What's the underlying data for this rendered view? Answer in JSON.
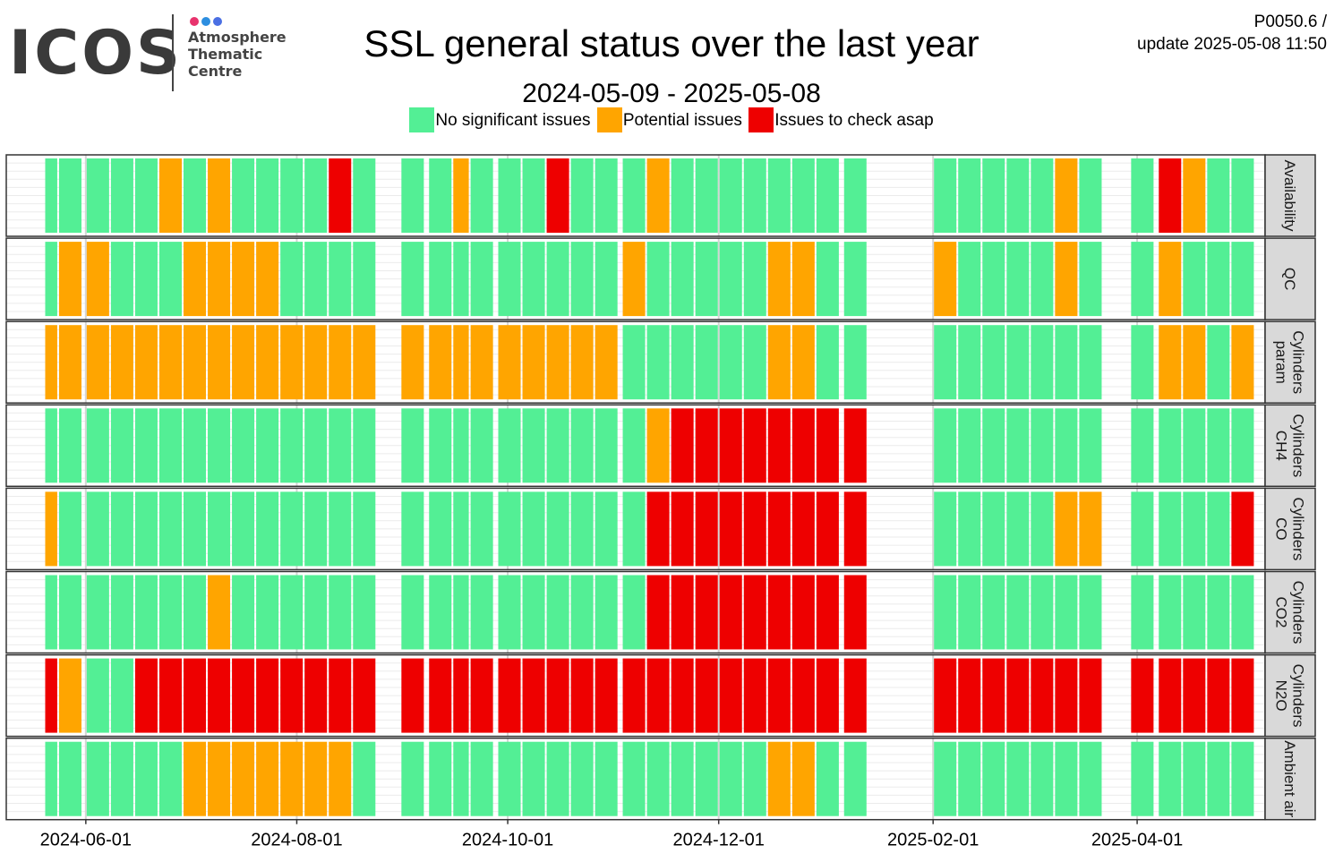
{
  "logo": {
    "wordmark": "ICOS",
    "line1": "Atmosphere",
    "line2": "Thematic",
    "line3": "Centre",
    "dot_colors": [
      "#e8336d",
      "#2d8ee0",
      "#4a6fe3"
    ]
  },
  "header": {
    "title": "SSL general status over the last year",
    "subtitle": "2024-05-09 - 2025-05-08",
    "version": "P0050.6 /",
    "update_label": "update  2025-05-08 11:50"
  },
  "colors": {
    "G": "#53ef95",
    "O": "#ffa500",
    "R": "#ee0000"
  },
  "chart_data": {
    "type": "heatmap",
    "title": "SSL general status over the last year",
    "subtitle": "2024-05-09 - 2025-05-08",
    "x_range": [
      "2024-05-09",
      "2025-05-08"
    ],
    "x_ticks": [
      "2024-06-01",
      "2024-08-01",
      "2024-10-01",
      "2024-12-01",
      "2025-02-01",
      "2025-04-01"
    ],
    "legend": [
      {
        "code": "G",
        "label": "No significant issues"
      },
      {
        "code": "O",
        "label": "Potential issues"
      },
      {
        "code": "R",
        "label": "Issues to check asap"
      }
    ],
    "weeks": [
      "2024-05-20",
      "2024-05-24",
      "2024-06-01",
      "2024-06-08",
      "2024-06-15",
      "2024-06-22",
      "2024-06-29",
      "2024-07-06",
      "2024-07-13",
      "2024-07-20",
      "2024-07-27",
      "2024-08-03",
      "2024-08-10",
      "2024-08-17",
      "2024-08-31",
      "2024-09-08",
      "2024-09-15",
      "2024-09-20",
      "2024-09-28",
      "2024-10-05",
      "2024-10-12",
      "2024-10-19",
      "2024-10-26",
      "2024-11-03",
      "2024-11-10",
      "2024-11-17",
      "2024-11-24",
      "2024-12-01",
      "2024-12-08",
      "2024-12-15",
      "2024-12-22",
      "2024-12-29",
      "2025-01-06",
      "2025-02-01",
      "2025-02-08",
      "2025-02-15",
      "2025-02-22",
      "2025-03-01",
      "2025-03-08",
      "2025-03-15",
      "2025-03-30",
      "2025-04-07",
      "2025-04-14",
      "2025-04-21",
      "2025-04-28"
    ],
    "rows": [
      {
        "label": "Availability",
        "label_lines": [
          "Availability"
        ],
        "status": [
          "G",
          "G",
          "G",
          "G",
          "G",
          "O",
          "G",
          "O",
          "G",
          "G",
          "G",
          "G",
          "R",
          "G",
          "G",
          "G",
          "O",
          "G",
          "G",
          "G",
          "R",
          "G",
          "G",
          "G",
          "O",
          "G",
          "G",
          "G",
          "G",
          "G",
          "G",
          "G",
          "G",
          "G",
          "G",
          "G",
          "G",
          "G",
          "O",
          "G",
          "G",
          "R",
          "O",
          "G",
          "G"
        ]
      },
      {
        "label": "QC",
        "label_lines": [
          "QC"
        ],
        "status": [
          "G",
          "O",
          "O",
          "G",
          "G",
          "G",
          "O",
          "O",
          "O",
          "O",
          "G",
          "G",
          "G",
          "G",
          "G",
          "G",
          "G",
          "G",
          "G",
          "G",
          "G",
          "G",
          "G",
          "O",
          "G",
          "G",
          "G",
          "G",
          "G",
          "O",
          "O",
          "G",
          "G",
          "O",
          "G",
          "G",
          "G",
          "G",
          "O",
          "G",
          "G",
          "O",
          "G",
          "G",
          "G"
        ]
      },
      {
        "label": "Cylinders param",
        "label_lines": [
          "Cylinders",
          "param"
        ],
        "status": [
          "O",
          "O",
          "O",
          "O",
          "O",
          "O",
          "O",
          "O",
          "O",
          "O",
          "O",
          "O",
          "O",
          "O",
          "O",
          "O",
          "O",
          "O",
          "O",
          "O",
          "O",
          "O",
          "O",
          "G",
          "G",
          "G",
          "G",
          "G",
          "G",
          "O",
          "O",
          "G",
          "G",
          "G",
          "G",
          "G",
          "G",
          "G",
          "G",
          "G",
          "G",
          "O",
          "O",
          "G",
          "O"
        ]
      },
      {
        "label": "Cylinders CH4",
        "label_lines": [
          "Cylinders",
          "CH4"
        ],
        "status": [
          "G",
          "G",
          "G",
          "G",
          "G",
          "G",
          "G",
          "G",
          "G",
          "G",
          "G",
          "G",
          "G",
          "G",
          "G",
          "G",
          "G",
          "G",
          "G",
          "G",
          "G",
          "G",
          "G",
          "G",
          "O",
          "R",
          "R",
          "R",
          "R",
          "R",
          "R",
          "R",
          "R",
          "G",
          "G",
          "G",
          "G",
          "G",
          "G",
          "G",
          "G",
          "G",
          "G",
          "G",
          "G"
        ]
      },
      {
        "label": "Cylinders CO",
        "label_lines": [
          "Cylinders",
          "CO"
        ],
        "status": [
          "O",
          "G",
          "G",
          "G",
          "G",
          "G",
          "G",
          "G",
          "G",
          "G",
          "G",
          "G",
          "G",
          "G",
          "G",
          "G",
          "G",
          "G",
          "G",
          "G",
          "G",
          "G",
          "G",
          "G",
          "R",
          "R",
          "R",
          "R",
          "R",
          "R",
          "R",
          "R",
          "R",
          "G",
          "G",
          "G",
          "G",
          "G",
          "O",
          "O",
          "G",
          "G",
          "G",
          "G",
          "R"
        ]
      },
      {
        "label": "Cylinders CO2",
        "label_lines": [
          "Cylinders",
          "CO2"
        ],
        "status": [
          "G",
          "G",
          "G",
          "G",
          "G",
          "G",
          "G",
          "O",
          "G",
          "G",
          "G",
          "G",
          "G",
          "G",
          "G",
          "G",
          "G",
          "G",
          "G",
          "G",
          "G",
          "G",
          "G",
          "G",
          "R",
          "R",
          "R",
          "R",
          "R",
          "R",
          "R",
          "R",
          "R",
          "G",
          "G",
          "G",
          "G",
          "G",
          "G",
          "G",
          "G",
          "G",
          "G",
          "G",
          "G"
        ]
      },
      {
        "label": "Cylinders N2O",
        "label_lines": [
          "Cylinders",
          "N2O"
        ],
        "status": [
          "R",
          "O",
          "G",
          "G",
          "R",
          "R",
          "R",
          "R",
          "R",
          "R",
          "R",
          "R",
          "R",
          "R",
          "R",
          "R",
          "R",
          "R",
          "R",
          "R",
          "R",
          "R",
          "R",
          "R",
          "R",
          "R",
          "R",
          "R",
          "R",
          "R",
          "R",
          "R",
          "R",
          "R",
          "R",
          "R",
          "R",
          "R",
          "R",
          "R",
          "R",
          "R",
          "R",
          "R",
          "R"
        ]
      },
      {
        "label": "Ambient air",
        "label_lines": [
          "Ambient air"
        ],
        "status": [
          "G",
          "G",
          "G",
          "G",
          "G",
          "G",
          "O",
          "O",
          "O",
          "O",
          "O",
          "O",
          "O",
          "G",
          "G",
          "G",
          "G",
          "G",
          "G",
          "G",
          "G",
          "G",
          "G",
          "G",
          "G",
          "G",
          "G",
          "G",
          "G",
          "O",
          "O",
          "G",
          "G",
          "G",
          "G",
          "G",
          "G",
          "G",
          "G",
          "G",
          "G",
          "G",
          "G",
          "G",
          "G"
        ]
      }
    ]
  }
}
